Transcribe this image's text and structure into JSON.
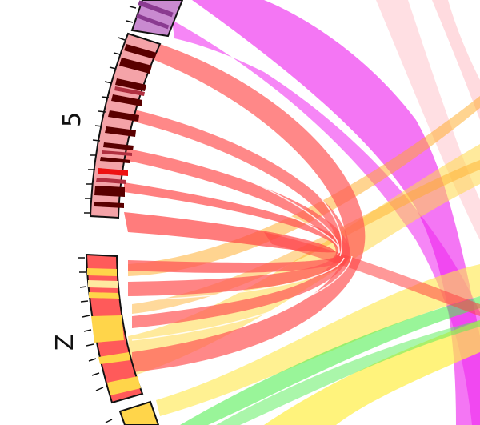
{
  "diagram": {
    "type": "circos",
    "segments": [
      {
        "id": "prev",
        "label": "",
        "base_color": "#c98ad0",
        "band_color": "#8a3a90"
      },
      {
        "id": "5",
        "label": "5",
        "base_color": "#f4a3a8",
        "band_color": "#5a0000"
      },
      {
        "id": "Z",
        "label": "Z",
        "base_color": "#ff5a5a",
        "band_color": "#ffd54a"
      },
      {
        "id": "next",
        "label": "",
        "base_color": "#ffd54a",
        "band_color": "#ffd54a"
      }
    ],
    "link_colors": {
      "red": "#ff5555",
      "magenta": "#ee22ee",
      "yellow": "#ffd84a",
      "orange": "#ffaa22",
      "green": "#55ee55",
      "pink": "#ffb8c0"
    }
  }
}
